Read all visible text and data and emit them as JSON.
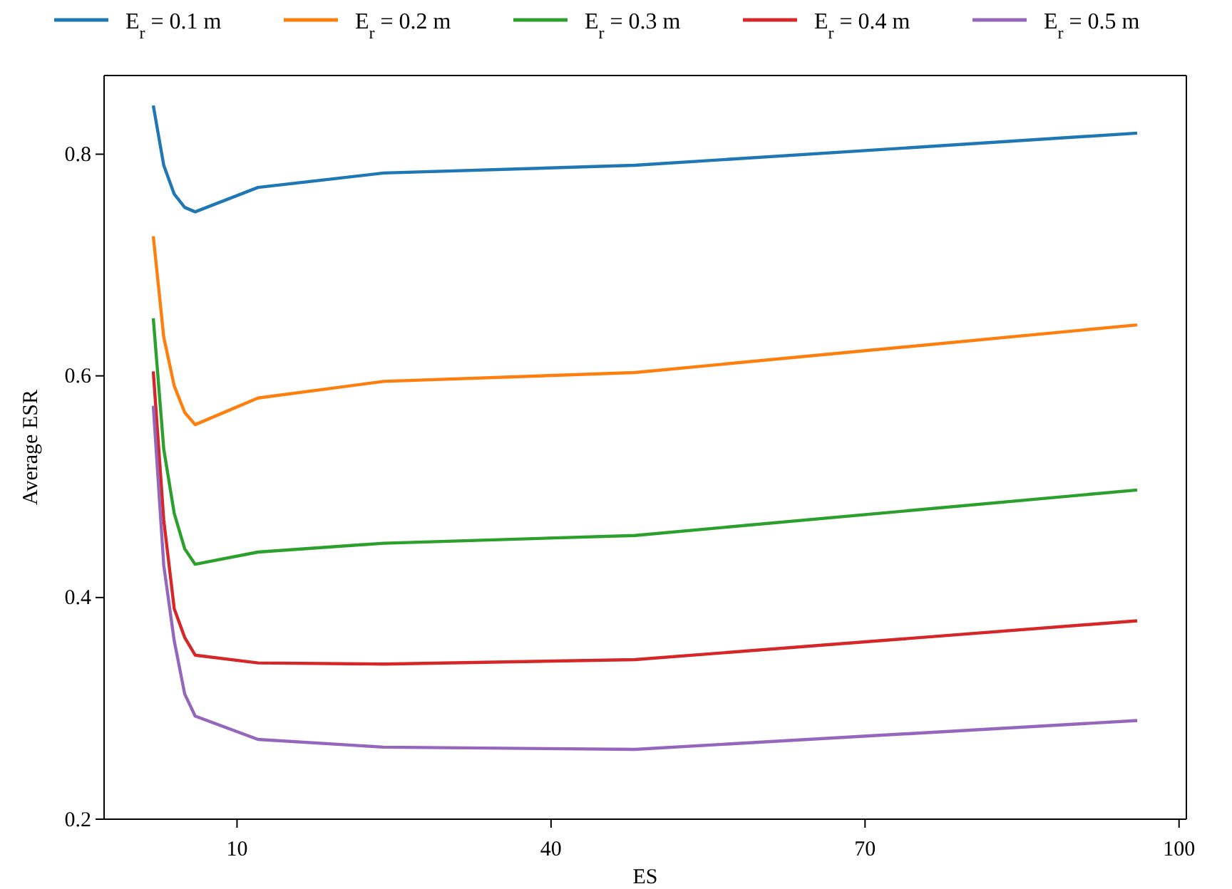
{
  "chart_data": {
    "type": "line",
    "xlabel": "ES",
    "ylabel": "Average ESR",
    "x": [
      2,
      3,
      4,
      5,
      6,
      12,
      24,
      48,
      96
    ],
    "xlim": [
      -2.7,
      100.7
    ],
    "xticks": [
      10,
      40,
      70,
      100
    ],
    "ylim": [
      0.2,
      0.871
    ],
    "yticks": [
      0.2,
      0.4,
      0.6,
      0.8
    ],
    "grid": false,
    "legend": "top",
    "marker": "none",
    "line_style": "solid",
    "series": [
      {
        "name": "E$_{r}$ = 0.1 m",
        "color": "#1f77b4",
        "values": [
          0.844,
          0.79,
          0.764,
          0.752,
          0.748,
          0.77,
          0.783,
          0.79,
          0.819
        ]
      },
      {
        "name": "E$_{r}$ = 0.2 m",
        "color": "#ff7f0e",
        "values": [
          0.726,
          0.635,
          0.591,
          0.567,
          0.556,
          0.58,
          0.595,
          0.603,
          0.646
        ]
      },
      {
        "name": "E$_{r}$ = 0.3 m",
        "color": "#2ca02c",
        "values": [
          0.652,
          0.534,
          0.476,
          0.444,
          0.43,
          0.441,
          0.449,
          0.456,
          0.497
        ]
      },
      {
        "name": "E$_{r}$ = 0.4 m",
        "color": "#d62728",
        "values": [
          0.604,
          0.47,
          0.39,
          0.364,
          0.348,
          0.341,
          0.34,
          0.344,
          0.379
        ]
      },
      {
        "name": "E$_{r}$ = 0.5 m",
        "color": "#9467bd",
        "values": [
          0.573,
          0.429,
          0.361,
          0.313,
          0.293,
          0.272,
          0.265,
          0.263,
          0.289
        ]
      }
    ]
  }
}
